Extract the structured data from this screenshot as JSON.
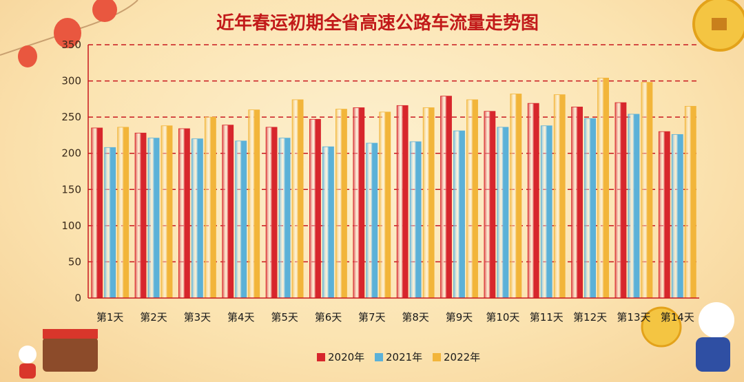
{
  "chart_data": {
    "type": "bar",
    "title": "近年春运初期全省高速公路车流量走势图",
    "categories": [
      "第1天",
      "第2天",
      "第3天",
      "第4天",
      "第5天",
      "第6天",
      "第7天",
      "第8天",
      "第9天",
      "第10天",
      "第11天",
      "第12天",
      "第13天",
      "第14天"
    ],
    "series": [
      {
        "name": "2020年",
        "values": [
          235,
          228,
          234,
          239,
          236,
          247,
          263,
          266,
          279,
          258,
          269,
          264,
          270,
          230
        ]
      },
      {
        "name": "2021年",
        "values": [
          208,
          221,
          220,
          217,
          221,
          209,
          214,
          216,
          231,
          236,
          238,
          248,
          254,
          226
        ]
      },
      {
        "name": "2022年",
        "values": [
          236,
          238,
          250,
          260,
          274,
          261,
          257,
          263,
          274,
          282,
          281,
          304,
          298,
          265
        ]
      }
    ],
    "yticks": [
      0,
      50,
      100,
      150,
      200,
      250,
      300,
      350
    ],
    "ylim": [
      0,
      350
    ],
    "grid": true,
    "legend_position": "bottom-center",
    "colors": {
      "series": [
        "#d7262c",
        "#5bb1d8",
        "#f2b53a"
      ],
      "grid": "#c8161d",
      "title": "#c21a1a"
    }
  }
}
